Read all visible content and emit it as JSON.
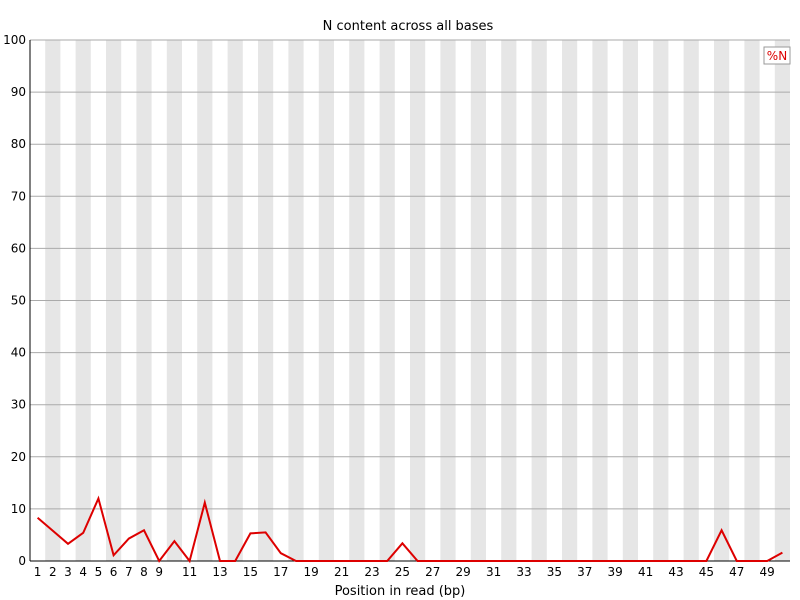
{
  "chart_data": {
    "type": "line",
    "title": "N content across all bases",
    "xlabel": "Position in read (bp)",
    "ylabel": "",
    "ylim": [
      0,
      100
    ],
    "yticks": [
      0,
      10,
      20,
      30,
      40,
      50,
      60,
      70,
      80,
      90,
      100
    ],
    "x": [
      1,
      2,
      3,
      4,
      5,
      6,
      7,
      8,
      9,
      10,
      11,
      12,
      13,
      14,
      15,
      16,
      17,
      18,
      19,
      20,
      21,
      22,
      23,
      24,
      25,
      26,
      27,
      28,
      29,
      30,
      31,
      32,
      33,
      34,
      35,
      36,
      37,
      38,
      39,
      40,
      41,
      42,
      43,
      44,
      45,
      46,
      47,
      48,
      49,
      50
    ],
    "xtick_labels": [
      "1",
      "2",
      "3",
      "4",
      "5",
      "6",
      "7",
      "8",
      "9",
      "",
      "11",
      "",
      "13",
      "",
      "15",
      "",
      "17",
      "",
      "19",
      "",
      "21",
      "",
      "23",
      "",
      "25",
      "",
      "27",
      "",
      "29",
      "",
      "31",
      "",
      "33",
      "",
      "35",
      "",
      "37",
      "",
      "39",
      "",
      "41",
      "",
      "43",
      "",
      "45",
      "",
      "47",
      "",
      "49",
      ""
    ],
    "series": [
      {
        "name": "%N",
        "color": "#dd0000",
        "values": [
          8.3,
          5.8,
          3.3,
          5.4,
          12.0,
          1.1,
          4.3,
          5.9,
          0.0,
          3.8,
          0.0,
          11.2,
          0.0,
          0.0,
          5.3,
          5.5,
          1.5,
          0.0,
          0.0,
          0.0,
          0.0,
          0.0,
          0.0,
          0.0,
          3.4,
          0.0,
          0.0,
          0.0,
          0.0,
          0.0,
          0.0,
          0.0,
          0.0,
          0.0,
          0.0,
          0.0,
          0.0,
          0.0,
          0.0,
          0.0,
          0.0,
          0.0,
          0.0,
          0.0,
          0.0,
          5.9,
          0.0,
          0.0,
          0.0,
          1.6
        ]
      }
    ],
    "grid": true,
    "legend": "top-right",
    "colors": {
      "band": "#e6e6e6",
      "grid": "#aaaaaa",
      "axis": "#000000",
      "line": "#dd0000"
    }
  }
}
